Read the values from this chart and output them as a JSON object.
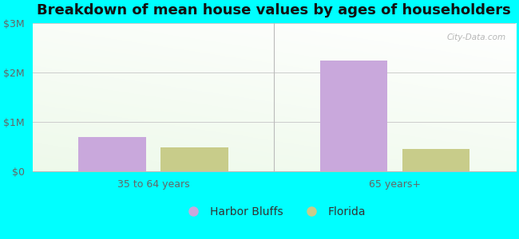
{
  "title": "Breakdown of mean house values by ages of householders",
  "categories": [
    "35 to 64 years",
    "65 years+"
  ],
  "harbor_bluffs": [
    700000,
    2250000
  ],
  "florida": [
    480000,
    450000
  ],
  "harbor_bluffs_color": "#c9a8dc",
  "florida_color": "#c8cc8a",
  "ylim": [
    0,
    3000000
  ],
  "yticks": [
    0,
    1000000,
    2000000,
    3000000
  ],
  "ytick_labels": [
    "$0",
    "$1M",
    "$2M",
    "$3M"
  ],
  "outer_bg": "#00FFFF",
  "bar_width": 0.28,
  "watermark": "City-Data.com",
  "legend_harbor": "Harbor Bluffs",
  "legend_florida": "Florida",
  "title_fontsize": 13,
  "tick_fontsize": 9,
  "legend_fontsize": 10
}
